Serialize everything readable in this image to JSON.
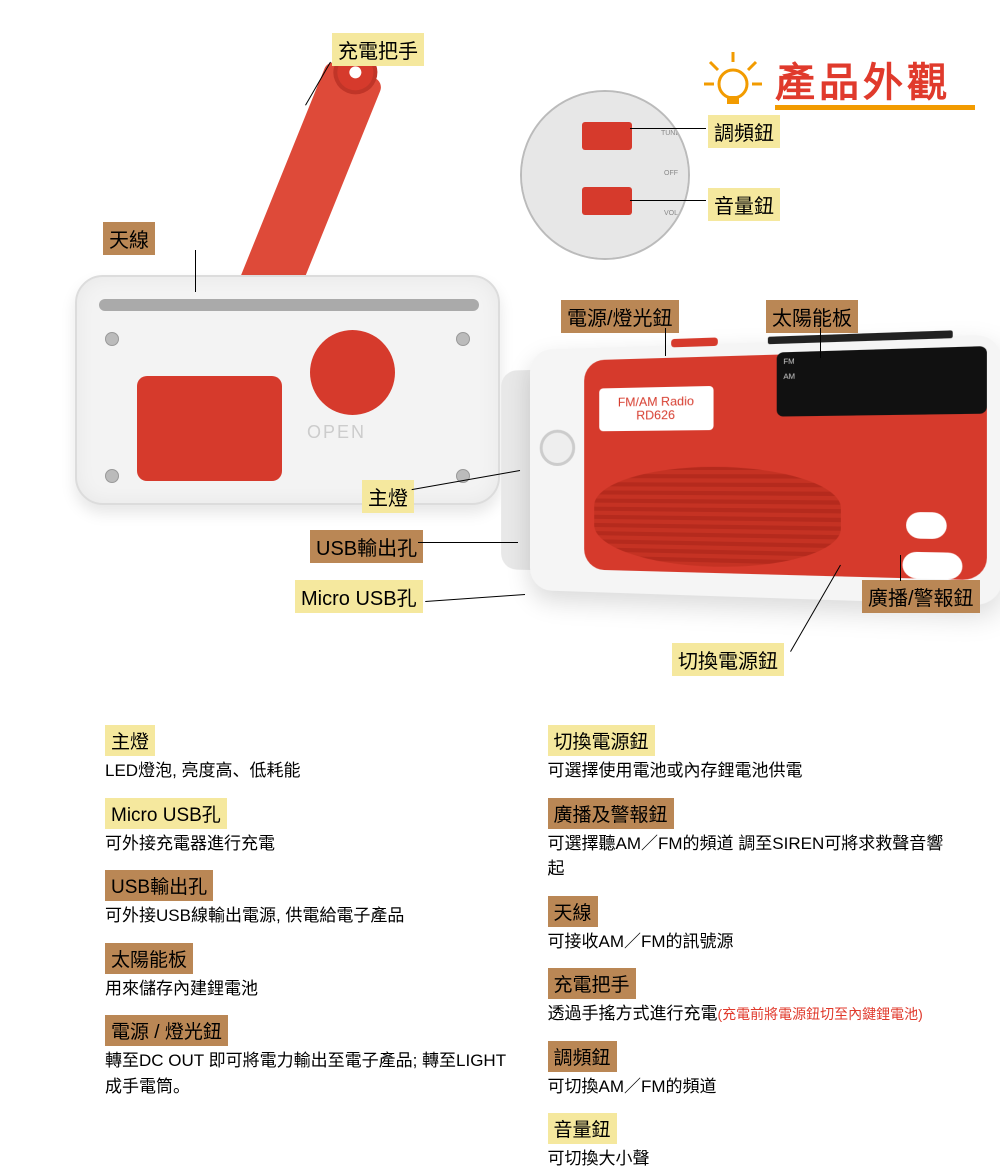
{
  "title": "產品外觀",
  "title_color": "#e03a2c",
  "underline_color": "#f29b00",
  "highlight_yellow": "#f5e89e",
  "highlight_brown": "#ba8755",
  "product_text_line1": "FM/AM Radio",
  "product_text_line2": "RD626",
  "callouts": {
    "crank": "充電把手",
    "antenna": "天線",
    "tune": "調頻鈕",
    "volume": "音量鈕",
    "power": "電源/燈光鈕",
    "solar": "太陽能板",
    "led": "主燈",
    "usb_out": "USB輸出孔",
    "micro": "Micro USB孔",
    "siren": "廣播/警報鈕",
    "switch": "切換電源鈕"
  },
  "open_label": "OPEN",
  "dial_text_fm": "FM",
  "dial_text_am": "AM",
  "circle_tune_label": "TUNE",
  "circle_off_label": "OFF",
  "circle_vol_label": "VOL",
  "desc_left": [
    {
      "hd": "主燈",
      "cls": "yellow-bg",
      "bd": "LED燈泡, 亮度高、低耗能"
    },
    {
      "hd": "Micro USB孔",
      "cls": "yellow-bg",
      "bd": "可外接充電器進行充電"
    },
    {
      "hd": "USB輸出孔",
      "cls": "brown-bg",
      "bd": "可外接USB線輸出電源, 供電給電子產品"
    },
    {
      "hd": "太陽能板",
      "cls": "brown-bg",
      "bd": "用來儲存內建鋰電池"
    },
    {
      "hd": "電源 / 燈光鈕",
      "cls": "brown-bg",
      "bd": "轉至DC OUT 即可將電力輸出至電子產品;\n轉至LIGHT 成手電筒。"
    }
  ],
  "desc_right": [
    {
      "hd": "切換電源鈕",
      "cls": "yellow-bg",
      "bd": "可選擇使用電池或內存鋰電池供電"
    },
    {
      "hd": "廣播及警報鈕",
      "cls": "brown-bg",
      "bd": "可選擇聽AM／FM的頻道\n調至SIREN可將求救聲音響起"
    },
    {
      "hd": "天線",
      "cls": "brown-bg",
      "bd": "可接收AM／FM的訊號源"
    },
    {
      "hd": "充電把手",
      "cls": "brown-bg",
      "bd": "透過手搖方式進行充電",
      "note": "(充電前將電源鈕切至內鍵鋰電池)"
    },
    {
      "hd": "調頻鈕",
      "cls": "brown-bg",
      "bd": "可切換AM／FM的頻道"
    },
    {
      "hd": "音量鈕",
      "cls": "yellow-bg",
      "bd": "可切換大小聲"
    }
  ]
}
